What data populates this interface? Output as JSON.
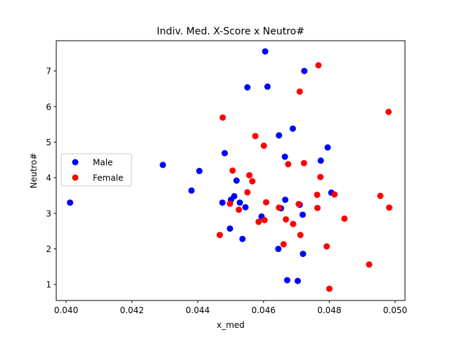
{
  "chart_data": {
    "type": "scatter",
    "title": "Indiv. Med. X-Score x Neutro#",
    "xlabel": "x_med",
    "ylabel": "Neutro#",
    "xlim": [
      0.0397,
      0.0503
    ],
    "ylim": [
      0.55,
      7.85
    ],
    "xticks": [
      "0.040",
      "0.042",
      "0.044",
      "0.046",
      "0.048",
      "0.050"
    ],
    "yticks": [
      "1",
      "2",
      "3",
      "4",
      "5",
      "6",
      "7"
    ],
    "grid": false,
    "legend_position": "center-left",
    "series": [
      {
        "name": "Male",
        "color": "#0000ff",
        "points": [
          [
            0.04012,
            3.3
          ],
          [
            0.04294,
            4.36
          ],
          [
            0.04381,
            3.64
          ],
          [
            0.04405,
            4.19
          ],
          [
            0.04475,
            3.3
          ],
          [
            0.04482,
            4.69
          ],
          [
            0.04498,
            2.57
          ],
          [
            0.04501,
            3.38
          ],
          [
            0.04511,
            3.48
          ],
          [
            0.04518,
            3.92
          ],
          [
            0.04528,
            3.3
          ],
          [
            0.04536,
            2.28
          ],
          [
            0.04545,
            3.17
          ],
          [
            0.04551,
            6.54
          ],
          [
            0.04594,
            2.91
          ],
          [
            0.04605,
            7.55
          ],
          [
            0.04612,
            6.56
          ],
          [
            0.04645,
            2.0
          ],
          [
            0.04647,
            5.19
          ],
          [
            0.04653,
            3.14
          ],
          [
            0.04665,
            4.59
          ],
          [
            0.04666,
            3.38
          ],
          [
            0.04672,
            1.12
          ],
          [
            0.04689,
            5.38
          ],
          [
            0.04704,
            1.1
          ],
          [
            0.0471,
            3.24
          ],
          [
            0.04719,
            2.96
          ],
          [
            0.0472,
            1.86
          ],
          [
            0.04724,
            7.0
          ],
          [
            0.04774,
            4.48
          ],
          [
            0.04795,
            4.85
          ],
          [
            0.04806,
            3.58
          ]
        ]
      },
      {
        "name": "Female",
        "color": "#ff0000",
        "points": [
          [
            0.04467,
            2.39
          ],
          [
            0.04476,
            5.69
          ],
          [
            0.04498,
            3.27
          ],
          [
            0.04506,
            4.2
          ],
          [
            0.04525,
            3.1
          ],
          [
            0.04551,
            3.59
          ],
          [
            0.04557,
            4.07
          ],
          [
            0.04566,
            3.9
          ],
          [
            0.04575,
            5.17
          ],
          [
            0.04585,
            2.76
          ],
          [
            0.04601,
            4.9
          ],
          [
            0.04603,
            2.81
          ],
          [
            0.04608,
            3.31
          ],
          [
            0.04647,
            3.16
          ],
          [
            0.04661,
            2.13
          ],
          [
            0.04668,
            2.83
          ],
          [
            0.04675,
            4.38
          ],
          [
            0.0469,
            2.7
          ],
          [
            0.04707,
            3.26
          ],
          [
            0.0471,
            6.42
          ],
          [
            0.04712,
            2.39
          ],
          [
            0.04723,
            4.41
          ],
          [
            0.04763,
            3.52
          ],
          [
            0.04764,
            3.15
          ],
          [
            0.04767,
            7.16
          ],
          [
            0.04773,
            4.02
          ],
          [
            0.04792,
            2.07
          ],
          [
            0.048,
            0.88
          ],
          [
            0.04816,
            3.53
          ],
          [
            0.04846,
            2.85
          ],
          [
            0.04921,
            1.56
          ],
          [
            0.04955,
            3.49
          ],
          [
            0.0498,
            5.85
          ],
          [
            0.04982,
            3.16
          ]
        ]
      }
    ]
  }
}
